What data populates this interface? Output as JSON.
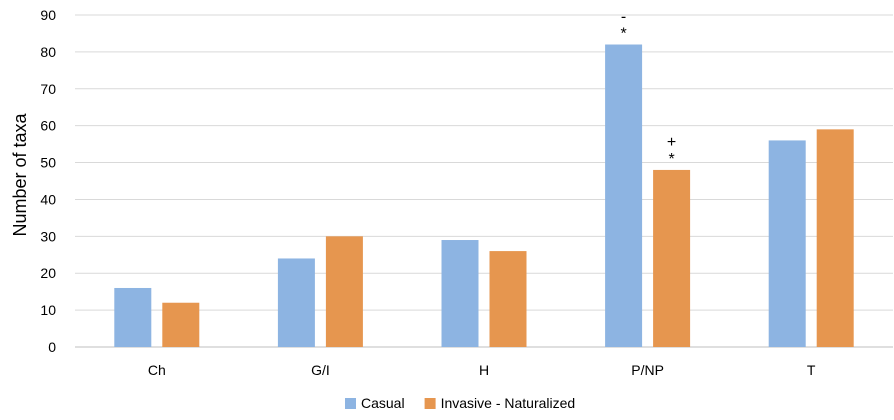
{
  "chart_data": {
    "type": "bar",
    "title": "",
    "xlabel": "",
    "ylabel": "Number of taxa",
    "ylim": [
      0,
      90
    ],
    "yticks": [
      0,
      10,
      20,
      30,
      40,
      50,
      60,
      70,
      80,
      90
    ],
    "grid": true,
    "legend_position": "bottom",
    "categories": [
      "Ch",
      "G/I",
      "H",
      "P/NP",
      "T"
    ],
    "series": [
      {
        "name": "Casual",
        "color": "#8db4e2",
        "values": [
          16,
          24,
          29,
          82,
          56
        ]
      },
      {
        "name": "Invasive - Naturalized",
        "color": "#e6964f",
        "values": [
          12,
          30,
          26,
          48,
          59
        ]
      }
    ],
    "annotations": [
      {
        "category": "P/NP",
        "series": "Casual",
        "lines": [
          "-",
          "*"
        ]
      },
      {
        "category": "P/NP",
        "series": "Invasive - Naturalized",
        "lines": [
          "+",
          "*"
        ]
      }
    ]
  }
}
